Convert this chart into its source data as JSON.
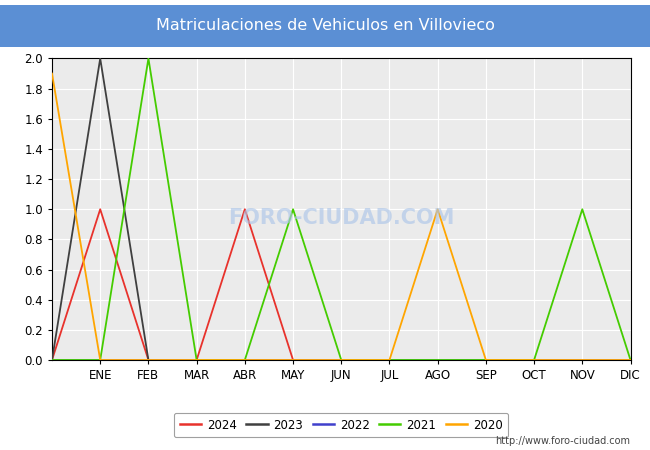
{
  "title": "Matriculaciones de Vehiculos en Villovieco",
  "title_bg_color": "#5b8fd4",
  "title_text_color": "white",
  "months_labels": [
    "ENE",
    "FEB",
    "MAR",
    "ABR",
    "MAY",
    "JUN",
    "JUL",
    "AGO",
    "SEP",
    "OCT",
    "NOV",
    "DIC"
  ],
  "series": {
    "2024": {
      "color": "#e8322c",
      "data_x": [
        0,
        1,
        2,
        3,
        4,
        5
      ],
      "data_y": [
        0,
        1,
        0,
        0,
        1,
        0
      ]
    },
    "2023": {
      "color": "#404040",
      "data_x": [
        0,
        1,
        2,
        12
      ],
      "data_y": [
        0,
        2,
        0,
        0
      ]
    },
    "2022": {
      "color": "#4040cc",
      "data_x": [
        0,
        12
      ],
      "data_y": [
        0,
        0
      ]
    },
    "2021": {
      "color": "#44cc00",
      "data_x": [
        0,
        1,
        2,
        3,
        4,
        5,
        6,
        7,
        8,
        9,
        10,
        11,
        12
      ],
      "data_y": [
        0,
        0,
        2,
        0,
        0,
        1,
        0,
        0,
        0,
        0,
        0,
        1,
        0
      ]
    },
    "2020": {
      "color": "#ffa500",
      "data_x": [
        0,
        1,
        2,
        3,
        4,
        5,
        6,
        7,
        8,
        9,
        10,
        11,
        12
      ],
      "data_y": [
        1.9,
        0,
        0,
        0,
        0,
        0,
        0,
        0,
        1,
        0,
        0,
        0,
        0
      ]
    }
  },
  "ylim": [
    0.0,
    2.0
  ],
  "yticks": [
    0.0,
    0.2,
    0.4,
    0.6,
    0.8,
    1.0,
    1.2,
    1.4,
    1.6,
    1.8,
    2.0
  ],
  "xlim": [
    0,
    12
  ],
  "plot_bg_color": "#ebebeb",
  "grid_color": "white",
  "watermark": "FORO-CIUDAD.COM",
  "url_text": "http://www.foro-ciudad.com",
  "legend_order": [
    "2024",
    "2023",
    "2022",
    "2021",
    "2020"
  ]
}
